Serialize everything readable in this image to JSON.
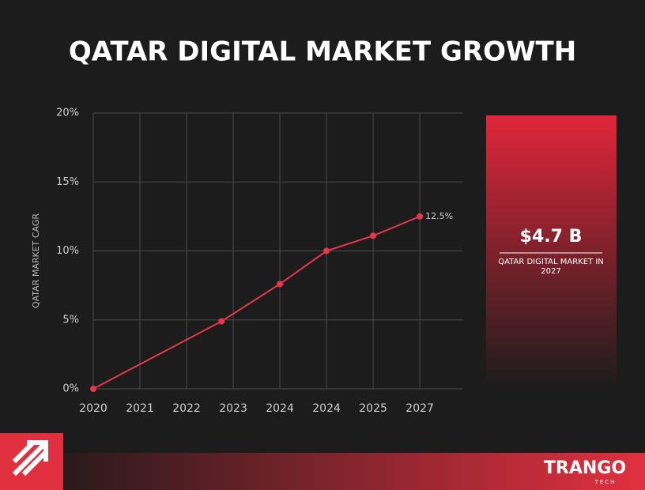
{
  "chart_data": {
    "type": "line",
    "title": "QATAR DIGITAL MARKET GROWTH",
    "y_label": "QATAR MARKET CAGR",
    "x": [
      0,
      2.75,
      4,
      5,
      6,
      7
    ],
    "values": [
      0,
      4.9,
      7.6,
      10,
      11.1,
      12.5
    ],
    "value_labels": [
      null,
      null,
      null,
      null,
      null,
      "12.5%"
    ],
    "color": "#e8374a",
    "xlim": [
      0,
      7.93
    ],
    "xticks": [
      {
        "value": 0,
        "label": "2020"
      },
      {
        "value": 1,
        "label": "2021"
      },
      {
        "value": 2,
        "label": "2022"
      },
      {
        "value": 3,
        "label": "2023"
      },
      {
        "value": 4,
        "label": "2024"
      },
      {
        "value": 5,
        "label": "2024"
      },
      {
        "value": 6,
        "label": "2025"
      },
      {
        "value": 7,
        "label": "2027"
      }
    ],
    "ylim": [
      0,
      20
    ],
    "yticks": [
      {
        "value": 0,
        "label": "0%"
      },
      {
        "value": 5,
        "label": "5%"
      },
      {
        "value": 10,
        "label": "10%"
      },
      {
        "value": 15,
        "label": "15%"
      },
      {
        "value": 20,
        "label": "20%"
      }
    ],
    "grid": true
  },
  "panel": {
    "value": "$4.7 B",
    "caption": "QATAR DIGITAL MARKET IN 2027"
  },
  "brand": {
    "name": "TRANGO",
    "sub": "TECH"
  }
}
